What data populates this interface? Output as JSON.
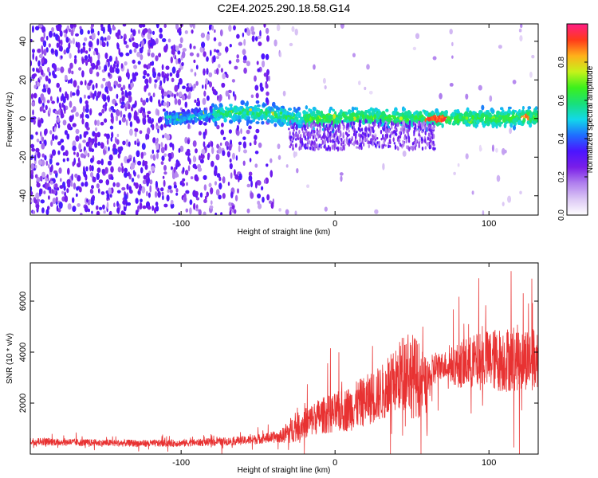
{
  "title": "C2E4.2025.290.18.58.G14",
  "chart_data": [
    {
      "type": "heatmap",
      "xlabel": "Height of straight line (km)",
      "ylabel": "Frequency (Hz)",
      "xlim": [
        -198,
        132
      ],
      "ylim": [
        -50,
        49
      ],
      "xticks": [
        "-100",
        "0",
        "100"
      ],
      "yticks": [
        "-40",
        "-20",
        "0",
        "20",
        "40"
      ],
      "colorbar": {
        "label": "Normalized spectral amplitude",
        "range": [
          0.0,
          1.0
        ],
        "ticks": [
          "0.0",
          "0.2",
          "0.4",
          "0.6",
          "0.8"
        ],
        "colormap": [
          "#ffffff",
          "#dcc8f5",
          "#b080ee",
          "#7a1ee8",
          "#4c14ff",
          "#1f6dff",
          "#12d8ea",
          "#18e07a",
          "#3cf01c",
          "#c6f21a",
          "#ffb01a",
          "#ff3a1a",
          "#ff1d86"
        ]
      },
      "ridge": {
        "description_free": true,
        "center_frequency": 0,
        "track": [
          {
            "x": -100,
            "y": 0
          },
          {
            "x": -75,
            "y": 3
          },
          {
            "x": -50,
            "y": 3
          },
          {
            "x": -25,
            "y": 0
          },
          {
            "x": 0,
            "y": 0
          },
          {
            "x": 25,
            "y": 1
          },
          {
            "x": 50,
            "y": 0
          },
          {
            "x": 65,
            "y": 0
          },
          {
            "x": 100,
            "y": 0
          },
          {
            "x": 132,
            "y": 1
          }
        ]
      }
    },
    {
      "type": "line",
      "xlabel": "Height of straight line (km)",
      "ylabel": "SNR (10 * v/v)",
      "xlim": [
        -198,
        132
      ],
      "ylim": [
        0,
        7500
      ],
      "xticks": [
        "-100",
        "0",
        "100"
      ],
      "yticks": [
        "2000",
        "4000",
        "6000"
      ],
      "color": "#e83232",
      "series": [
        {
          "x": [
            -198,
            -180,
            -160,
            -140,
            -120,
            -100,
            -80,
            -60,
            -45,
            -35,
            -30,
            -20,
            -10,
            0,
            10,
            20,
            30,
            40,
            45,
            50,
            55,
            60,
            65,
            70,
            80,
            90,
            100,
            110,
            120,
            132
          ],
          "y": [
            500,
            480,
            450,
            430,
            420,
            430,
            470,
            530,
            620,
            700,
            900,
            1200,
            1500,
            1600,
            1800,
            2100,
            2400,
            2900,
            3300,
            3100,
            2900,
            2800,
            3400,
            3500,
            3500,
            3600,
            3700,
            3700,
            3800,
            3700
          ],
          "spread": [
            150,
            150,
            140,
            140,
            140,
            140,
            150,
            170,
            200,
            250,
            500,
            600,
            700,
            800,
            900,
            1000,
            1100,
            1300,
            1600,
            1700,
            1500,
            800,
            700,
            500,
            900,
            1100,
            1200,
            1300,
            1300,
            1200
          ]
        }
      ]
    }
  ]
}
